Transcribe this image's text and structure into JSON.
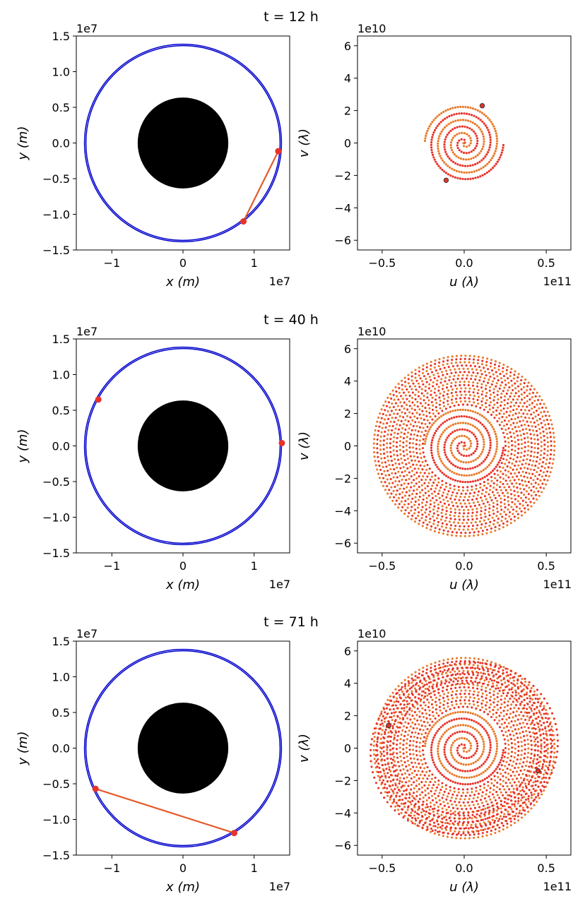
{
  "chart_data": [
    {
      "panel_title": "t = 12 h",
      "orbit": {
        "type": "line",
        "xlabel": "x (m)",
        "ylabel": "y (m)",
        "x_multiplier": "1e7",
        "y_multiplier": "1e7",
        "xlim": [
          -1.5,
          1.5
        ],
        "ylim": [
          -1.5,
          1.5
        ],
        "xticks": [
          -1,
          0,
          1
        ],
        "xtick_labels": [
          "−1",
          "0",
          "1"
        ],
        "yticks": [
          -1.5,
          -1.0,
          -0.5,
          0.0,
          0.5,
          1.0,
          1.5
        ],
        "ytick_labels": [
          "−1.5",
          "−1.0",
          "−0.5",
          "0.0",
          "0.5",
          "1.0",
          "1.5"
        ],
        "planet_radius": 0.637,
        "orbit_radii": [
          1.365,
          1.385
        ],
        "satellites": [
          {
            "x": 1.34,
            "y": -0.115
          },
          {
            "x": 0.85,
            "y": -1.1
          }
        ],
        "baseline": true,
        "colors": {
          "orbit": "#0000cc",
          "satellite": "#e8332a",
          "baseline": "#e65a2b",
          "planet": "#000000"
        }
      },
      "uv": {
        "type": "scatter",
        "xlabel": "u (λ)",
        "ylabel": "v (λ)",
        "x_multiplier": "1e11",
        "y_multiplier": "1e10",
        "xlim": [
          -0.65,
          0.65
        ],
        "ylim": [
          -6.6,
          6.6
        ],
        "xticks": [
          -0.5,
          0.0,
          0.5
        ],
        "xtick_labels": [
          "−0.5",
          "0.0",
          "0.5"
        ],
        "yticks": [
          -6,
          -4,
          -2,
          0,
          2,
          4,
          6
        ],
        "ytick_labels": [
          "−6",
          "−4",
          "−2",
          "0",
          "2",
          "4",
          "6"
        ],
        "spiral": {
          "turns": 3,
          "arms": 2,
          "max_radius": 0.24
        },
        "outer_disk": null,
        "markers": [
          {
            "u": 0.11,
            "v": 2.3
          },
          {
            "u": -0.11,
            "v": -2.3
          }
        ],
        "colors": {
          "dots_a": "#e8332a",
          "dots_b": "#e87a2a",
          "marker_edge": "#333333"
        }
      }
    },
    {
      "panel_title": "t = 40 h",
      "orbit": {
        "type": "line",
        "xlabel": "x (m)",
        "ylabel": "y (m)",
        "x_multiplier": "1e7",
        "y_multiplier": "1e7",
        "xlim": [
          -1.5,
          1.5
        ],
        "ylim": [
          -1.5,
          1.5
        ],
        "xticks": [
          -1,
          0,
          1
        ],
        "xtick_labels": [
          "−1",
          "0",
          "1"
        ],
        "yticks": [
          -1.5,
          -1.0,
          -0.5,
          0.0,
          0.5,
          1.0,
          1.5
        ],
        "ytick_labels": [
          "−1.5",
          "−1.0",
          "−0.5",
          "0.0",
          "0.5",
          "1.0",
          "1.5"
        ],
        "planet_radius": 0.637,
        "orbit_radii": [
          1.365,
          1.385
        ],
        "satellites": [
          {
            "x": -1.19,
            "y": 0.65
          },
          {
            "x": 1.39,
            "y": 0.04
          }
        ],
        "baseline": false,
        "colors": {
          "orbit": "#0000cc",
          "satellite": "#e8332a",
          "baseline": "#e65a2b",
          "planet": "#000000"
        }
      },
      "uv": {
        "type": "scatter",
        "xlabel": "u (λ)",
        "ylabel": "v (λ)",
        "x_multiplier": "1e11",
        "y_multiplier": "1e10",
        "xlim": [
          -0.65,
          0.65
        ],
        "ylim": [
          -6.6,
          6.6
        ],
        "xticks": [
          -0.5,
          0.0,
          0.5
        ],
        "xtick_labels": [
          "−0.5",
          "0.0",
          "0.5"
        ],
        "yticks": [
          -6,
          -4,
          -2,
          0,
          2,
          4,
          6
        ],
        "ytick_labels": [
          "−6",
          "−4",
          "−2",
          "0",
          "2",
          "4",
          "6"
        ],
        "spiral": {
          "turns": 3,
          "arms": 2,
          "max_radius": 0.24
        },
        "outer_disk": {
          "max_radius": 0.55
        },
        "markers": [],
        "colors": {
          "dots_a": "#e8332a",
          "dots_b": "#e87a2a",
          "marker_edge": "#333333"
        }
      }
    },
    {
      "panel_title": "t = 71 h",
      "orbit": {
        "type": "line",
        "xlabel": "x (m)",
        "ylabel": "y (m)",
        "x_multiplier": "1e7",
        "y_multiplier": "1e7",
        "xlim": [
          -1.5,
          1.5
        ],
        "ylim": [
          -1.5,
          1.5
        ],
        "xticks": [
          -1,
          0,
          1
        ],
        "xtick_labels": [
          "−1",
          "0",
          "1"
        ],
        "yticks": [
          -1.5,
          -1.0,
          -0.5,
          0.0,
          0.5,
          1.0,
          1.5
        ],
        "ytick_labels": [
          "−1.5",
          "−1.0",
          "−0.5",
          "0.0",
          "0.5",
          "1.0",
          "1.5"
        ],
        "planet_radius": 0.637,
        "orbit_radii": [
          1.365,
          1.385
        ],
        "satellites": [
          {
            "x": -1.23,
            "y": -0.57
          },
          {
            "x": 0.72,
            "y": -1.19
          }
        ],
        "baseline": true,
        "colors": {
          "orbit": "#0000cc",
          "satellite": "#e8332a",
          "baseline": "#e65a2b",
          "planet": "#000000"
        }
      },
      "uv": {
        "type": "scatter",
        "xlabel": "u (λ)",
        "ylabel": "v (λ)",
        "x_multiplier": "1e11",
        "y_multiplier": "1e10",
        "xlim": [
          -0.65,
          0.65
        ],
        "ylim": [
          -6.6,
          6.6
        ],
        "xticks": [
          -0.5,
          0.0,
          0.5
        ],
        "xtick_labels": [
          "−0.5",
          "0.0",
          "0.5"
        ],
        "yticks": [
          -6,
          -4,
          -2,
          0,
          2,
          4,
          6
        ],
        "ytick_labels": [
          "−6",
          "−4",
          "−2",
          "0",
          "2",
          "4",
          "6"
        ],
        "spiral": {
          "turns": 3,
          "arms": 2,
          "max_radius": 0.24
        },
        "outer_disk": {
          "max_radius": 0.55
        },
        "extra_ring": {
          "inner": 0.4,
          "outer": 0.56
        },
        "markers": [
          {
            "u": -0.46,
            "v": 1.4
          },
          {
            "u": 0.45,
            "v": -1.4
          }
        ],
        "colors": {
          "dots_a": "#e8332a",
          "dots_b": "#e87a2a",
          "marker_edge": "#333333"
        }
      }
    }
  ]
}
